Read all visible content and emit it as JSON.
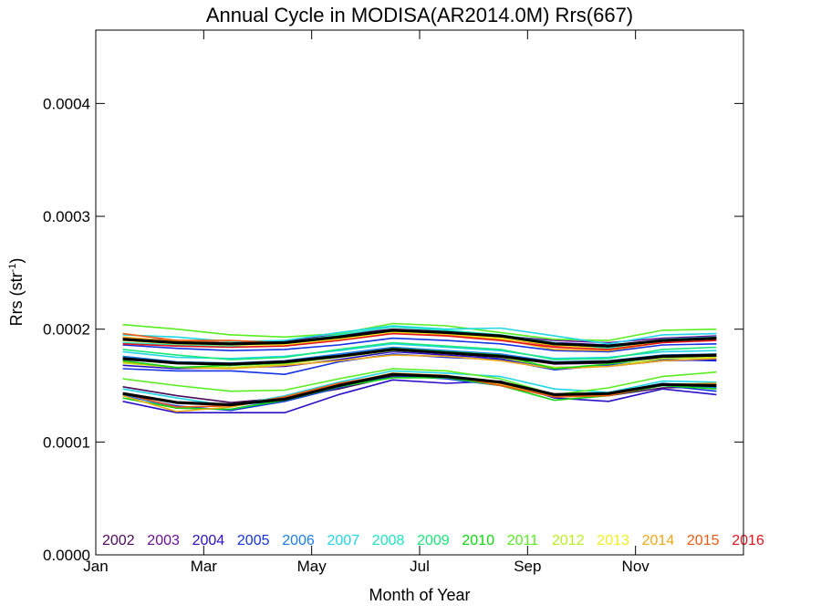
{
  "chart_data": {
    "type": "line",
    "title": "Annual Cycle in MODISA(AR2014.0M) Rrs(667)",
    "xlabel": "Month of Year",
    "ylabel_main": "Rrs (str",
    "ylabel_sup": "-1",
    "ylabel_close": ")",
    "x": [
      1,
      2,
      3,
      4,
      5,
      6,
      7,
      8,
      9,
      10,
      11,
      12
    ],
    "xlim": [
      0.5,
      12.5
    ],
    "ylim": [
      0.0,
      0.000465
    ],
    "x_ticks": [
      {
        "value": 0.5,
        "label": "Jan"
      },
      {
        "value": 2.5,
        "label": "Mar"
      },
      {
        "value": 4.5,
        "label": "May"
      },
      {
        "value": 6.5,
        "label": "Jul"
      },
      {
        "value": 8.5,
        "label": "Sep"
      },
      {
        "value": 10.5,
        "label": "Nov"
      }
    ],
    "y_ticks": [
      {
        "value": 0.0,
        "label": "0.0000"
      },
      {
        "value": 0.0001,
        "label": "0.0001"
      },
      {
        "value": 0.0002,
        "label": "0.0002"
      },
      {
        "value": 0.0003,
        "label": "0.0003"
      },
      {
        "value": 0.0004,
        "label": "0.0004"
      }
    ],
    "legend_position": "bottom",
    "legend": [
      {
        "label": "2002",
        "color": "#4b0a5a"
      },
      {
        "label": "2003",
        "color": "#6a0f9a"
      },
      {
        "label": "2004",
        "color": "#2a10c8"
      },
      {
        "label": "2005",
        "color": "#1432e6"
      },
      {
        "label": "2006",
        "color": "#1a7ef0"
      },
      {
        "label": "2007",
        "color": "#20d6e6"
      },
      {
        "label": "2008",
        "color": "#1ee8c0"
      },
      {
        "label": "2009",
        "color": "#18e87a"
      },
      {
        "label": "2010",
        "color": "#10d810"
      },
      {
        "label": "2011",
        "color": "#58ee20"
      },
      {
        "label": "2012",
        "color": "#b8f020"
      },
      {
        "label": "2013",
        "color": "#f0f020"
      },
      {
        "label": "2014",
        "color": "#f0a814"
      },
      {
        "label": "2015",
        "color": "#f05a10"
      },
      {
        "label": "2016",
        "color": "#e8141e"
      }
    ],
    "series": [
      {
        "color": "#2a10c8",
        "values": [
          0.000136,
          0.000126,
          0.000126,
          0.000126,
          0.000142,
          0.000155,
          0.000152,
          0.000154,
          0.000139,
          0.000136,
          0.000147,
          0.000142
        ]
      },
      {
        "color": "#4b0a5a",
        "values": [
          0.000149,
          0.000141,
          0.000135,
          0.000139,
          0.000147,
          0.000158,
          0.000158,
          0.000153,
          0.000142,
          0.000141,
          0.000148,
          0.000149
        ]
      },
      {
        "color": "#1432e6",
        "values": [
          0.000141,
          0.000132,
          0.000128,
          0.000136,
          0.000148,
          0.000159,
          0.000156,
          0.00015,
          0.00014,
          0.000142,
          0.00015,
          0.000145
        ]
      },
      {
        "color": "#1a7ef0",
        "values": [
          0.000142,
          0.00013,
          0.000129,
          0.000138,
          0.00015,
          0.00016,
          0.000158,
          0.000152,
          0.000141,
          0.000143,
          0.000152,
          0.000148
        ]
      },
      {
        "color": "#20d6e6",
        "values": [
          0.000147,
          0.000139,
          0.000132,
          0.000141,
          0.000153,
          0.000163,
          0.000161,
          0.000158,
          0.000147,
          0.000144,
          0.000154,
          0.000153
        ]
      },
      {
        "color": "#58ee20",
        "values": [
          0.000156,
          0.00015,
          0.000145,
          0.000146,
          0.000156,
          0.000165,
          0.000163,
          0.000156,
          0.000142,
          0.000148,
          0.000158,
          0.000162
        ]
      },
      {
        "color": "#10d810",
        "values": [
          0.000139,
          0.00013,
          0.000129,
          0.000137,
          0.000149,
          0.000157,
          0.000157,
          0.00015,
          0.000137,
          0.000141,
          0.00015,
          0.000147
        ]
      },
      {
        "color": "#f0a814",
        "values": [
          0.000141,
          0.000127,
          0.000131,
          0.00014,
          0.000151,
          0.000161,
          0.000159,
          0.000151,
          0.000141,
          0.000142,
          0.000151,
          0.000152
        ]
      },
      {
        "color": "#f05a10",
        "values": [
          0.000143,
          0.000131,
          0.000132,
          0.00014,
          0.000152,
          0.00016,
          0.000159,
          0.00015,
          0.00014,
          0.000141,
          0.000151,
          0.000151
        ]
      },
      {
        "color": "#1432e6",
        "values": [
          0.000165,
          0.000163,
          0.000163,
          0.00016,
          0.000171,
          0.000178,
          0.000175,
          0.000173,
          0.000164,
          0.000168,
          0.000173,
          0.000172
        ]
      },
      {
        "color": "#2a10c8",
        "values": [
          0.000168,
          0.000165,
          0.000166,
          0.000167,
          0.000173,
          0.00018,
          0.000177,
          0.000174,
          0.000166,
          0.000167,
          0.000172,
          0.000173
        ]
      },
      {
        "color": "#6a0f9a",
        "values": [
          0.000173,
          0.00017,
          0.000168,
          0.00017,
          0.000176,
          0.000182,
          0.000179,
          0.000176,
          0.000169,
          0.00017,
          0.000175,
          0.000176
        ]
      },
      {
        "color": "#1a7ef0",
        "values": [
          0.000176,
          0.000171,
          0.00017,
          0.000172,
          0.000178,
          0.000184,
          0.000181,
          0.000178,
          0.000171,
          0.000172,
          0.000177,
          0.000178
        ]
      },
      {
        "color": "#20d6e6",
        "values": [
          0.00018,
          0.000175,
          0.000174,
          0.000176,
          0.000181,
          0.000187,
          0.000184,
          0.000181,
          0.000174,
          0.000175,
          0.00018,
          0.000181
        ]
      },
      {
        "color": "#18e87a",
        "values": [
          0.000182,
          0.000177,
          0.000173,
          0.000175,
          0.000182,
          0.000188,
          0.000185,
          0.000182,
          0.000173,
          0.000174,
          0.000182,
          0.000184
        ]
      },
      {
        "color": "#b8f020",
        "values": [
          0.00017,
          0.000166,
          0.000166,
          0.000169,
          0.000175,
          0.000181,
          0.000179,
          0.000175,
          0.000166,
          0.000167,
          0.000174,
          0.000175
        ]
      },
      {
        "color": "#f0a814",
        "values": [
          0.000171,
          0.000166,
          0.000165,
          0.000168,
          0.000172,
          0.000177,
          0.000176,
          0.000172,
          0.000165,
          0.000167,
          0.000172,
          0.000174
        ]
      },
      {
        "color": "#10d810",
        "values": [
          0.000172,
          0.000166,
          0.000168,
          0.00017,
          0.000176,
          0.000183,
          0.00018,
          0.000177,
          0.000165,
          0.000169,
          0.000176,
          0.000177
        ]
      },
      {
        "color": "#1432e6",
        "values": [
          0.000186,
          0.000183,
          0.000181,
          0.000182,
          0.000186,
          0.000192,
          0.00019,
          0.000187,
          0.000181,
          0.00018,
          0.000186,
          0.000187
        ]
      },
      {
        "color": "#2a10c8",
        "values": [
          0.000191,
          0.000189,
          0.000186,
          0.000189,
          0.000193,
          0.000199,
          0.000197,
          0.000193,
          0.000188,
          0.000186,
          0.00019,
          0.000192
        ]
      },
      {
        "color": "#6a0f9a",
        "values": [
          0.000192,
          0.00019,
          0.000188,
          0.00019,
          0.000195,
          0.0002,
          0.000198,
          0.000194,
          0.00019,
          0.000188,
          0.000192,
          0.000194
        ]
      },
      {
        "color": "#58ee20",
        "values": [
          0.000204,
          0.0002,
          0.000195,
          0.000193,
          0.000196,
          0.000205,
          0.000203,
          0.000197,
          0.000191,
          0.00019,
          0.000199,
          0.0002
        ]
      },
      {
        "color": "#20d6e6",
        "values": [
          0.000195,
          0.000193,
          0.000189,
          0.00019,
          0.000197,
          0.000203,
          0.0002,
          0.000201,
          0.000194,
          0.000187,
          0.000195,
          0.000196
        ]
      },
      {
        "color": "#f05a10",
        "values": [
          0.000196,
          0.00019,
          0.00019,
          0.000188,
          0.000191,
          0.000198,
          0.000196,
          0.000192,
          0.000185,
          0.000184,
          0.000189,
          0.000193
        ]
      },
      {
        "color": "#f0a814",
        "values": [
          0.000193,
          0.000189,
          0.000188,
          0.000186,
          0.000192,
          0.000198,
          0.000195,
          0.000191,
          0.000182,
          0.000181,
          0.000188,
          0.000191
        ]
      },
      {
        "color": "#1ee8c0",
        "values": [
          0.000188,
          0.000186,
          0.000185,
          0.000188,
          0.000195,
          0.000202,
          0.000199,
          0.000195,
          0.000188,
          0.000183,
          0.000191,
          0.000193
        ]
      },
      {
        "color": "#f0f020",
        "values": [
          0.00019,
          0.000187,
          0.000186,
          0.000186,
          0.000191,
          0.000197,
          0.000196,
          0.000192,
          0.000186,
          0.000182,
          0.000189,
          0.000191
        ]
      },
      {
        "color": "#e8141e",
        "values": [
          0.000187,
          0.000185,
          0.000184,
          0.000185,
          0.00019,
          0.000196,
          0.000194,
          0.00019,
          0.000184,
          0.000182,
          0.000188,
          0.00019
        ]
      },
      {
        "color": "#000000",
        "width": 3.2,
        "values": [
          0.000143,
          0.000135,
          0.000133,
          0.000138,
          0.00015,
          0.00016,
          0.000158,
          0.000153,
          0.000142,
          0.000143,
          0.000151,
          0.00015
        ]
      },
      {
        "color": "#000000",
        "width": 3.2,
        "values": [
          0.000174,
          0.00017,
          0.000169,
          0.000171,
          0.000176,
          0.000182,
          0.000179,
          0.000176,
          0.00017,
          0.000171,
          0.000176,
          0.000177
        ]
      },
      {
        "color": "#000000",
        "width": 3.2,
        "values": [
          0.000191,
          0.000188,
          0.000187,
          0.000188,
          0.000193,
          0.000199,
          0.000197,
          0.000194,
          0.000187,
          0.000185,
          0.00019,
          0.000192
        ]
      }
    ]
  }
}
